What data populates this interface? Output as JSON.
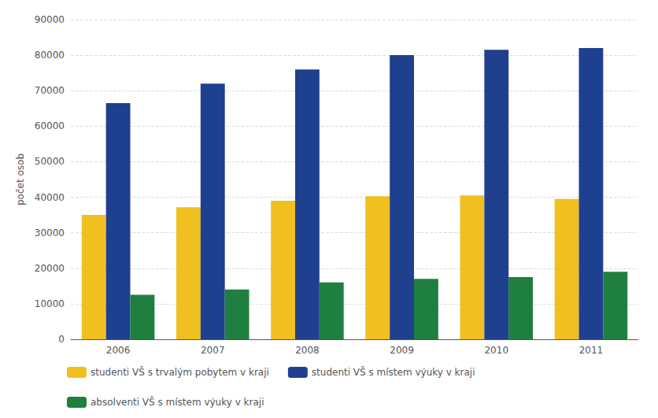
{
  "chart_data": {
    "type": "bar",
    "ylabel": "počet osob",
    "categories": [
      "2006",
      "2007",
      "2008",
      "2009",
      "2010",
      "2011"
    ],
    "series": [
      {
        "name": "studenti VŠ s trvalým pobytem v kraji",
        "color": "#f0c020",
        "values": [
          35000,
          37200,
          39000,
          40300,
          40500,
          39500
        ]
      },
      {
        "name": "studenti VŠ s místem výuky v kraji",
        "color": "#1f3f8f",
        "values": [
          66500,
          72000,
          76000,
          80000,
          81500,
          82000
        ]
      },
      {
        "name": "absolventi VŠ s místem výuky v kraji",
        "color": "#1f7f3f",
        "values": [
          12500,
          14000,
          16000,
          17000,
          17500,
          19000
        ]
      }
    ],
    "ylim": [
      0,
      90000
    ],
    "yticks": [
      0,
      10000,
      20000,
      30000,
      40000,
      50000,
      60000,
      70000,
      80000,
      90000
    ],
    "grid": true,
    "legend": "lower left"
  }
}
